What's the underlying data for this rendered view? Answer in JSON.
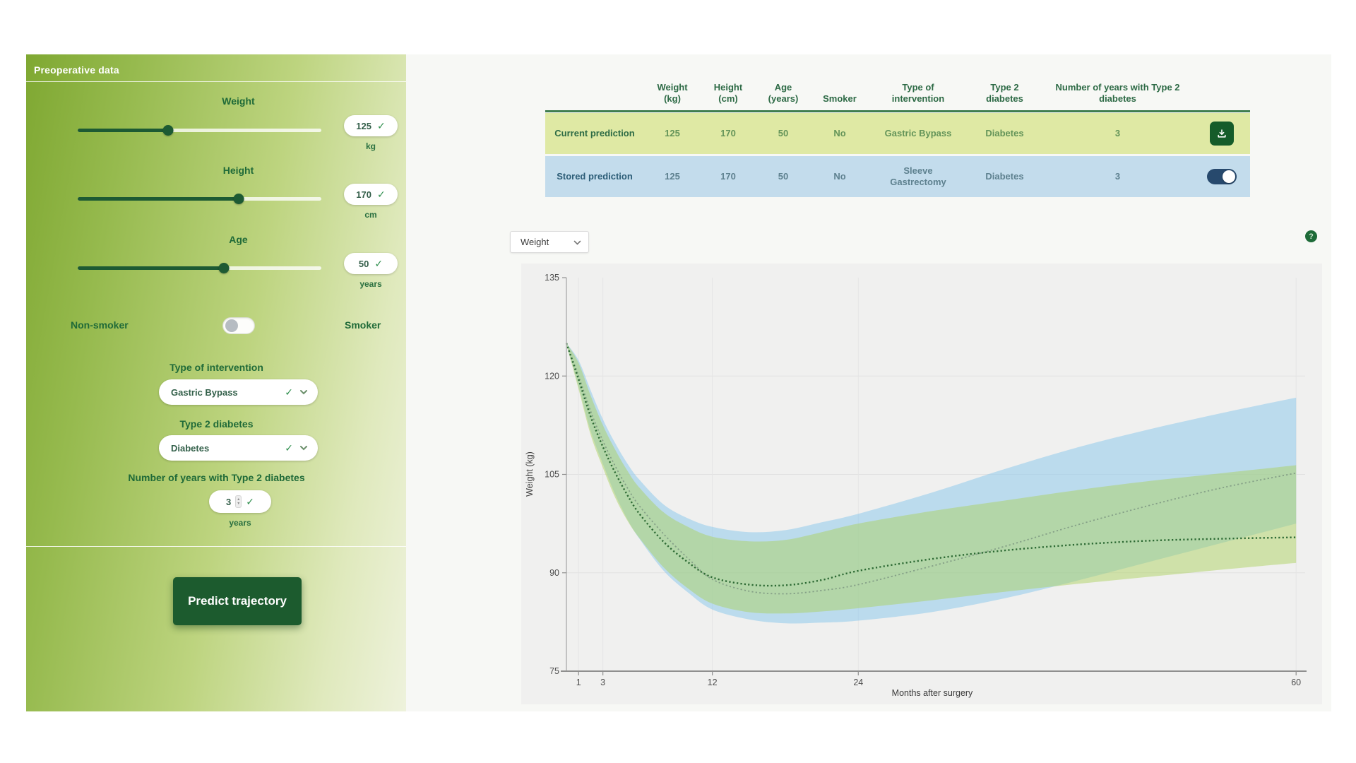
{
  "panel": {
    "title": "Preoperative data",
    "sliders": [
      {
        "label": "Weight",
        "value": "125",
        "unit": "kg",
        "fill_pct": 37
      },
      {
        "label": "Height",
        "value": "170",
        "unit": "cm",
        "fill_pct": 66
      },
      {
        "label": "Age",
        "value": "50",
        "unit": "years",
        "fill_pct": 60
      }
    ],
    "smoker_toggle": {
      "left_label": "Non-smoker",
      "right_label": "Smoker",
      "state": "non-smoker"
    },
    "intervention": {
      "label": "Type of intervention",
      "value": "Gastric Bypass"
    },
    "diabetes": {
      "label": "Type 2 diabetes",
      "value": "Diabetes"
    },
    "diabetes_years": {
      "label": "Number of years with Type 2 diabetes",
      "value": "3",
      "unit": "years"
    },
    "predict_button_label": "Predict trajectory"
  },
  "table": {
    "headers": [
      {
        "l1": "",
        "l2": ""
      },
      {
        "l1": "Weight",
        "l2": "(kg)"
      },
      {
        "l1": "Height",
        "l2": "(cm)"
      },
      {
        "l1": "Age",
        "l2": "(years)"
      },
      {
        "l1": "Smoker",
        "l2": ""
      },
      {
        "l1": "Type of",
        "l2": "intervention"
      },
      {
        "l1": "Type 2",
        "l2": "diabetes"
      },
      {
        "l1": "Number of years with Type 2",
        "l2": "diabetes"
      },
      {
        "l1": "",
        "l2": ""
      }
    ],
    "rows": [
      {
        "label": "Current prediction",
        "values": [
          "125",
          "170",
          "50",
          "No",
          "Gastric Bypass",
          "Diabetes",
          "3"
        ],
        "action": "save"
      },
      {
        "label": "Stored prediction",
        "values": [
          "125",
          "170",
          "50",
          "No",
          "Sleeve Gastrectomy",
          "Diabetes",
          "3"
        ],
        "action": "toggle-on"
      }
    ]
  },
  "chart_controls": {
    "metric_select_value": "Weight",
    "help_label": "?"
  },
  "chart_data": {
    "type": "line",
    "title": "",
    "xlabel": "Months after surgery",
    "ylabel": "Weight (kg)",
    "xlim": [
      0,
      60
    ],
    "ylim": [
      75,
      135
    ],
    "x_ticks": [
      1,
      3,
      12,
      24,
      60
    ],
    "y_ticks": [
      75,
      90,
      105,
      120,
      135
    ],
    "grid_y_values": [
      90,
      105,
      120
    ],
    "legend_position": "none",
    "x": [
      0,
      1,
      2,
      3,
      4,
      5,
      6,
      8,
      10,
      12,
      15,
      18,
      21,
      24,
      30,
      36,
      42,
      48,
      54,
      60
    ],
    "series": [
      {
        "name": "Stored prediction (Sleeve Gastrectomy)",
        "style": "dotted",
        "color": "#85a087",
        "width": 1.8,
        "values": [
          125,
          120.0,
          114.6,
          110.1,
          106.3,
          103.0,
          100.2,
          95.9,
          92.2,
          89.0,
          87.2,
          86.8,
          87.3,
          88.2,
          91.0,
          94.0,
          97.3,
          100.3,
          103.0,
          105.2
        ]
      },
      {
        "name": "Current prediction (Gastric Bypass)",
        "style": "dotted",
        "color": "#2d6a34",
        "width": 2.4,
        "values": [
          125,
          119.5,
          113.8,
          109.2,
          105.3,
          101.9,
          99.0,
          94.7,
          91.6,
          89.3,
          88.2,
          88.1,
          88.9,
          90.3,
          92.1,
          93.4,
          94.3,
          94.9,
          95.2,
          95.4
        ]
      }
    ],
    "bands": [
      {
        "name": "Stored prediction 95% CI",
        "color": "rgba(139,199,235,0.52)",
        "upper": [
          125,
          122.4,
          117.8,
          113.4,
          109.8,
          106.7,
          104.2,
          100.4,
          98.3,
          97.0,
          96.2,
          96.5,
          97.7,
          99.0,
          102.2,
          105.8,
          109.1,
          111.9,
          114.4,
          116.7
        ],
        "lower": [
          124.8,
          118.4,
          111.6,
          106.6,
          102.0,
          98.2,
          95.2,
          90.3,
          87.0,
          84.4,
          82.9,
          82.3,
          82.4,
          82.7,
          84.0,
          86.1,
          88.8,
          91.7,
          94.6,
          97.5
        ]
      },
      {
        "name": "Current prediction 95% CI",
        "color": "rgba(171,209,93,0.48)",
        "upper": [
          125,
          122.0,
          117.0,
          112.5,
          108.8,
          105.6,
          103.0,
          99.2,
          97.0,
          95.5,
          94.8,
          95.0,
          96.2,
          97.5,
          99.4,
          101.0,
          102.6,
          104.0,
          105.2,
          106.4
        ],
        "lower": [
          124.8,
          118.0,
          111.0,
          106.0,
          101.5,
          98.0,
          95.3,
          90.8,
          87.6,
          85.3,
          84.0,
          83.8,
          84.1,
          84.6,
          85.8,
          87.1,
          88.3,
          89.4,
          90.5,
          91.5
        ]
      }
    ]
  },
  "colors": {
    "accent_dark_green": "#1c5b2e",
    "label_green": "#1f6a38",
    "row_current_bg": "#dfe9a4",
    "row_stored_bg": "#c3dcec",
    "stored_toggle_bg": "#27496d",
    "band_green": "#c9e29e",
    "band_blue": "#c3e0f2"
  }
}
